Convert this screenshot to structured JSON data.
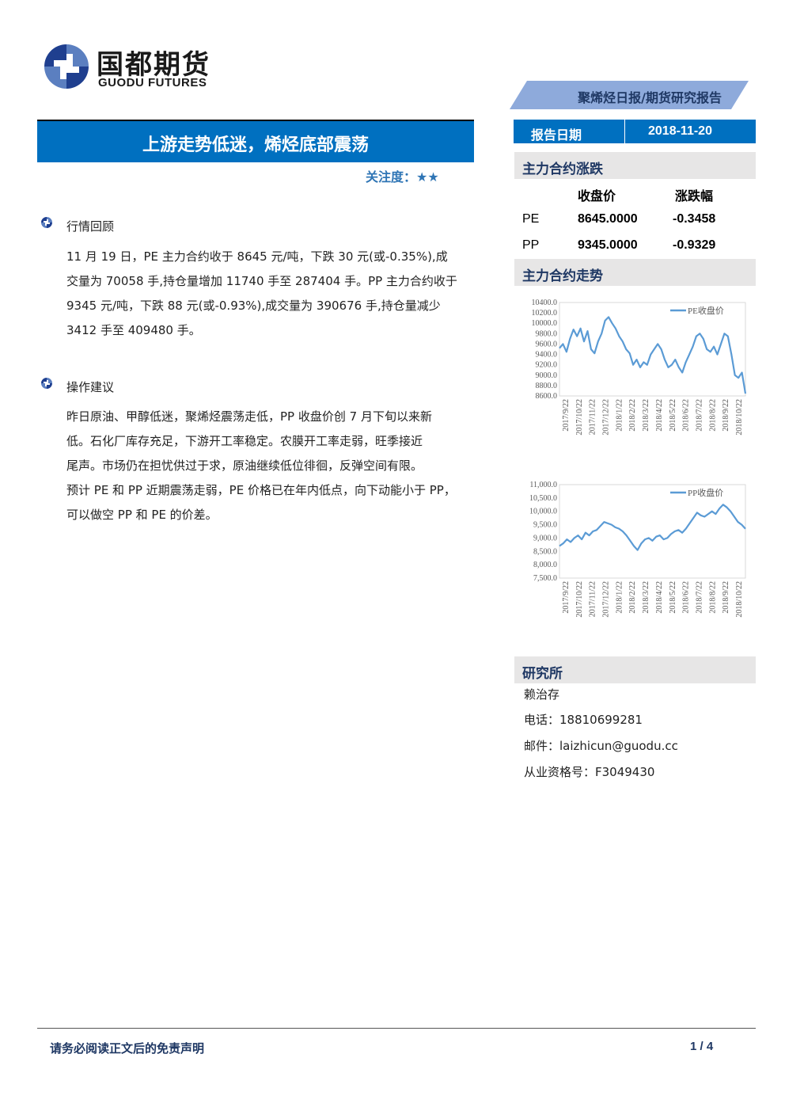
{
  "brand": {
    "name_cn": "国都期货",
    "name_en": "GUODU FUTURES"
  },
  "report_type": "聚烯烃日报/期货研究报告",
  "title": "上游走势低迷，烯烃底部震荡",
  "attention": {
    "label": "关注度：",
    "stars": "★★"
  },
  "report_date": {
    "label": "报告日期",
    "value": "2018-11-20"
  },
  "price_section": {
    "title": "主力合约涨跌",
    "headers": [
      "收盘价",
      "涨跌幅"
    ],
    "rows": [
      {
        "name": "PE",
        "close": "8645.0000",
        "change": "-0.3458"
      },
      {
        "name": "PP",
        "close": "9345.0000",
        "change": "-0.9329"
      }
    ]
  },
  "trend_section": {
    "title": "主力合约走势"
  },
  "market_review": {
    "title": "行情回顾",
    "lines": [
      "11 月 19 日，PE 主力合约收于 8645 元/吨，下跌 30 元(或-0.35%),成",
      "交量为 70058 手,持仓量增加 11740 手至 287404 手。PP 主力合约收于",
      "9345 元/吨，下跌 88 元(或-0.93%),成交量为 390676 手,持仓量减少",
      "3412 手至 409480 手。"
    ]
  },
  "advice": {
    "title": "操作建议",
    "lines": [
      "昨日原油、甲醇低迷，聚烯烃震荡走低，PP 收盘价创 7 月下旬以来新",
      "低。石化厂库存充足，下游开工率稳定。农膜开工率走弱，旺季接近",
      "尾声。市场仍在担忧供过于求，原油继续低位徘徊，反弹空间有限。",
      "预计 PE 和 PP 近期震荡走弱，PE 价格已在年内低点，向下动能小于 PP，",
      "可以做空 PP 和 PE 的价差。"
    ]
  },
  "research": {
    "title": "研究所",
    "name": "赖治存",
    "phone": "电话：18810699281",
    "email": "邮件：laizhicun@guodu.cc",
    "license": "从业资格号：F3049430"
  },
  "footer": {
    "disclaimer": "请务必阅读正文后的免责声明",
    "page": "1 / 4"
  },
  "colors": {
    "accent": "#0070c0",
    "banner": "#8eaadb",
    "line": "#5b9bd5",
    "section_bg": "#e7e6e6"
  },
  "chart_data": [
    {
      "type": "line",
      "title": "",
      "series": [
        {
          "name": "PE收盘价",
          "values": [
            9520,
            9600,
            9450,
            9700,
            9880,
            9750,
            9900,
            9650,
            9850,
            9500,
            9420,
            9650,
            9800,
            10050,
            10120,
            10000,
            9900,
            9750,
            9650,
            9500,
            9420,
            9200,
            9300,
            9150,
            9250,
            9200,
            9400,
            9500,
            9600,
            9500,
            9300,
            9150,
            9200,
            9300,
            9150,
            9050,
            9250,
            9400,
            9550,
            9750,
            9800,
            9700,
            9500,
            9450,
            9550,
            9400,
            9600,
            9800,
            9750,
            9400,
            9000,
            8950,
            9050,
            8645
          ]
        }
      ],
      "x_start": "2017-09-22",
      "x_end": "2018-11-19",
      "xticks": [
        "2017/9/22",
        "2017/10/22",
        "2017/11/22",
        "2017/12/22",
        "2018/1/22",
        "2018/2/22",
        "2018/3/22",
        "2018/4/22",
        "2018/5/22",
        "2018/6/22",
        "2018/7/22",
        "2018/8/22",
        "2018/9/22",
        "2018/10/22"
      ],
      "yticks": [
        "10400.0",
        "10200.0",
        "10000.0",
        "9800.0",
        "9600.0",
        "9400.0",
        "9200.0",
        "9000.0",
        "8800.0",
        "8600.0"
      ],
      "ylim": [
        8600,
        10400
      ],
      "legend": "top-right"
    },
    {
      "type": "line",
      "title": "",
      "series": [
        {
          "name": "PP收盘价",
          "values": [
            8700,
            8800,
            8950,
            8850,
            9000,
            9100,
            8950,
            9200,
            9100,
            9250,
            9300,
            9450,
            9600,
            9550,
            9500,
            9400,
            9350,
            9250,
            9100,
            8900,
            8700,
            8550,
            8800,
            8950,
            9000,
            8900,
            9050,
            9100,
            8950,
            9000,
            9150,
            9250,
            9300,
            9200,
            9350,
            9550,
            9750,
            9950,
            9850,
            9800,
            9900,
            10000,
            9900,
            10100,
            10250,
            10150,
            10000,
            9800,
            9600,
            9500,
            9345
          ]
        }
      ],
      "x_start": "2017-09-22",
      "x_end": "2018-11-19",
      "xticks": [
        "2017/9/22",
        "2017/10/22",
        "2017/11/22",
        "2017/12/22",
        "2018/1/22",
        "2018/2/22",
        "2018/3/22",
        "2018/4/22",
        "2018/5/22",
        "2018/6/22",
        "2018/7/22",
        "2018/8/22",
        "2018/9/22",
        "2018/10/22"
      ],
      "yticks": [
        "11,000.0",
        "10,500.0",
        "10,000.0",
        "9,500.0",
        "9,000.0",
        "8,500.0",
        "8,000.0",
        "7,500.0"
      ],
      "ylim": [
        7500,
        11000
      ],
      "legend": "top-right"
    }
  ]
}
